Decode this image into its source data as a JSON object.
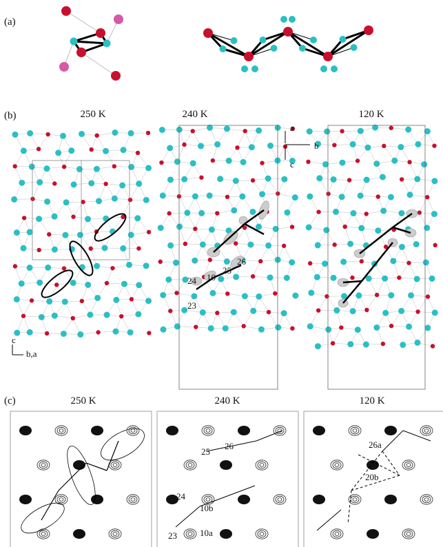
{
  "panel_a": {
    "label": "(a)"
  },
  "panel_b": {
    "label": "(b)",
    "titles": [
      "250 K",
      "240 K",
      "120 K"
    ],
    "axis_labels": {
      "a": "a",
      "b": "b",
      "c": "c"
    },
    "corner_axes": {
      "vertical": "c",
      "horizontal": "b,a"
    },
    "atom_labels": [
      "24",
      "10",
      "25",
      "26",
      "23"
    ]
  },
  "panel_c": {
    "label": "(c)",
    "titles": [
      "250 K",
      "240 K",
      "120 K"
    ],
    "labels_240": [
      "25",
      "26",
      "24",
      "10b",
      "10a",
      "23"
    ],
    "labels_120": [
      "26a",
      "20b"
    ]
  }
}
